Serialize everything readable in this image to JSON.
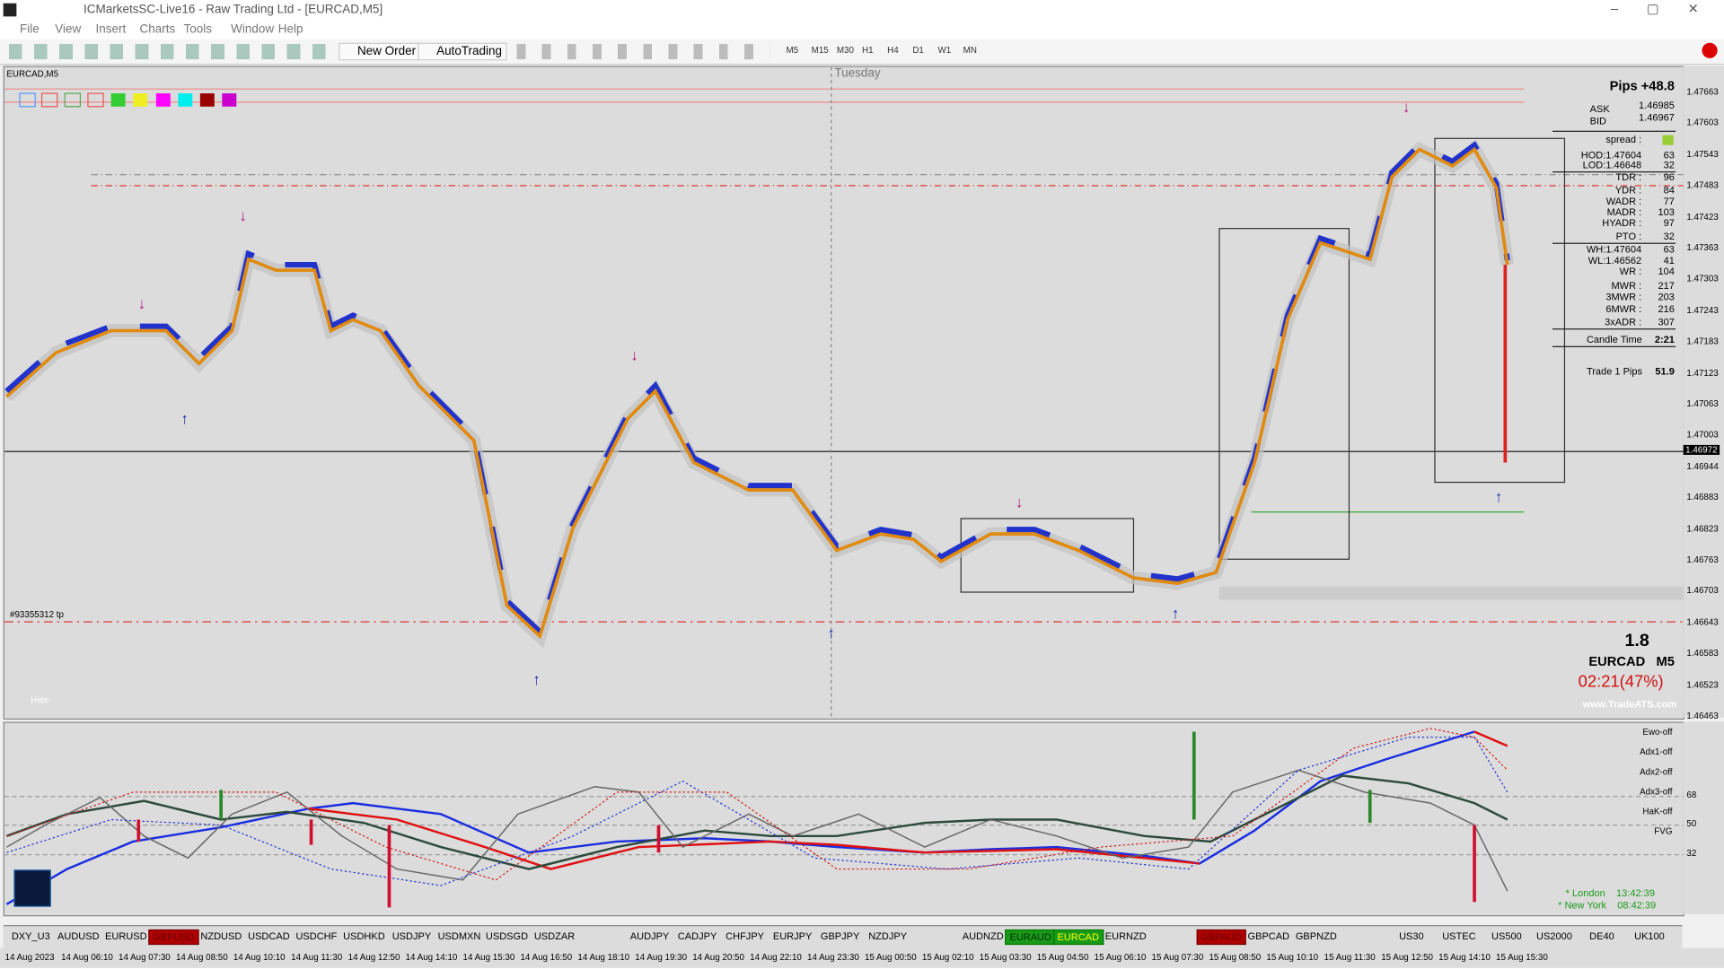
{
  "window": {
    "title": "ICMarketsSC-Live16 - Raw Trading Ltd - [EURCAD,M5]",
    "menu": [
      "File",
      "View",
      "Insert",
      "Charts",
      "Tools",
      "Window",
      "Help"
    ]
  },
  "toolbar": {
    "buttons": [
      "New Order",
      "AutoTrading"
    ],
    "timeframes": [
      "M5",
      "M15",
      "M30",
      "H1",
      "H4",
      "D1",
      "W1",
      "MN"
    ]
  },
  "chart": {
    "symbol_label": "EURCAD,M5",
    "day_label": "Tuesday",
    "order_label": "#93355312 tp",
    "hide_label": "Hide",
    "price_axis": [
      "1.47663",
      "1.47603",
      "1.47543",
      "1.47483",
      "1.47423",
      "1.47363",
      "1.47303",
      "1.47243",
      "1.47183",
      "1.47123",
      "1.47063",
      "1.47003",
      "1.46944",
      "1.46883",
      "1.46823",
      "1.46763",
      "1.46703",
      "1.46643",
      "1.46583",
      "1.46523",
      "1.46463"
    ],
    "current_price": "1.46972",
    "time_axis": [
      "14 Aug 2023",
      "14 Aug 06:10",
      "14 Aug 07:30",
      "14 Aug 08:50",
      "14 Aug 10:10",
      "14 Aug 11:30",
      "14 Aug 12:50",
      "14 Aug 14:10",
      "14 Aug 15:30",
      "14 Aug 16:50",
      "14 Aug 18:10",
      "14 Aug 19:30",
      "14 Aug 20:50",
      "14 Aug 22:10",
      "14 Aug 23:30",
      "15 Aug 00:50",
      "15 Aug 02:10",
      "15 Aug 03:30",
      "15 Aug 04:50",
      "15 Aug 06:10",
      "15 Aug 07:30",
      "15 Aug 08:50",
      "15 Aug 10:10",
      "15 Aug 11:30",
      "15 Aug 12:50",
      "15 Aug 14:10",
      "15 Aug 15:30"
    ]
  },
  "info_panel": {
    "pips": "Pips +48.8",
    "quotes": [
      {
        "label": "ASK",
        "value": "1.46985"
      },
      {
        "label": "BID",
        "value": "1.46967"
      }
    ],
    "rows": [
      {
        "label": "spread :"
      },
      {
        "label": "HOD:1.47604",
        "value": "63"
      },
      {
        "label": "LOD:1.46648",
        "value": "32"
      },
      {
        "label": "TDR :",
        "value": "96"
      },
      {
        "label": "YDR :",
        "value": "84"
      },
      {
        "label": "WADR :",
        "value": "77"
      },
      {
        "label": "MADR :",
        "value": "103"
      },
      {
        "label": "HYADR :",
        "value": "97"
      },
      {
        "label": "PTO :",
        "value": "32"
      },
      {
        "label": "WH:1.47604",
        "value": "63"
      },
      {
        "label": "WL:1.46562",
        "value": "41"
      },
      {
        "label": "WR :",
        "value": "104"
      },
      {
        "label": "MWR :",
        "value": "217"
      },
      {
        "label": "3MWR :",
        "value": "203"
      },
      {
        "label": "6MWR :",
        "value": "216"
      },
      {
        "label": "3xADR :",
        "value": "307"
      },
      {
        "label": "Candle Time",
        "value": "2:21"
      },
      {
        "label": "Trade 1 Pips",
        "value": "51.9"
      }
    ]
  },
  "summary": {
    "spread": "1.8",
    "symbol": "EURCAD   M5",
    "timer": "02:21(47%)",
    "site": "www.TradeATS.com"
  },
  "indicator": {
    "labels": [
      "Ewo-off",
      "Adx1-off",
      "Adx2-off",
      "Adx3-off",
      "HaK-off",
      "FVG"
    ],
    "levels": [
      "68",
      "50",
      "32"
    ],
    "clocks": [
      "* London    13:42:39",
      "* New York    08:42:39"
    ]
  },
  "symbol_bar": [
    {
      "label": "DXY_U3"
    },
    {
      "label": "AUDUSD"
    },
    {
      "label": "EURUSD"
    },
    {
      "label": "GBPUSD",
      "state": "red"
    },
    {
      "label": "NZDUSD"
    },
    {
      "label": "USDCAD"
    },
    {
      "label": "USDCHF"
    },
    {
      "label": "USDHKD"
    },
    {
      "label": "USDJPY"
    },
    {
      "label": "USDMXN"
    },
    {
      "label": "USDSGD"
    },
    {
      "label": "USDZAR"
    },
    {
      "label": "AUDJPY"
    },
    {
      "label": "CADJPY"
    },
    {
      "label": "CHFJPY"
    },
    {
      "label": "EURJPY"
    },
    {
      "label": "GBPJPY"
    },
    {
      "label": "NZDJPY"
    },
    {
      "label": "AUDNZD"
    },
    {
      "label": "EURAUD",
      "state": "green-dark"
    },
    {
      "label": "EURCAD",
      "state": "green"
    },
    {
      "label": "EURNZD"
    },
    {
      "label": "GBPAUD",
      "state": "red"
    },
    {
      "label": "GBPCAD"
    },
    {
      "label": "GBPNZD"
    },
    {
      "label": "US30"
    },
    {
      "label": "USTEC"
    },
    {
      "label": "US500"
    },
    {
      "label": "US2000"
    },
    {
      "label": "DE40"
    },
    {
      "label": "UK100"
    }
  ]
}
